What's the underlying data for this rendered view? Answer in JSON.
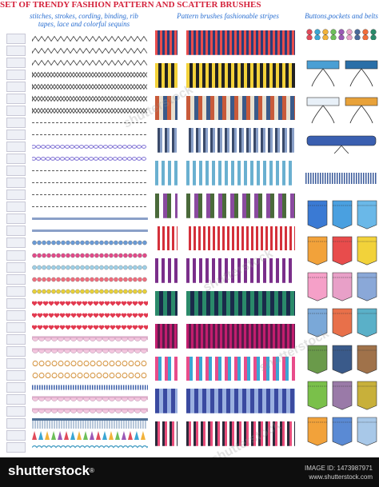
{
  "title": "SET OF TRENDY FASHION PATTERN AND SCATTER BRUSHES",
  "subtitles": {
    "left": "stitches, strokes, cording, binding, rib tapes, lace and colorful sequins",
    "middle": "Pattern brushes fashionable stripes",
    "right": "Buttons,pockets and belts"
  },
  "footer": {
    "logo": "shutterstock",
    "image_id": "IMAGE ID: 1473987971",
    "site": "www.shutterstock.com"
  },
  "watermark": "shutterstock",
  "icons": {
    "buttons_row": "colored-buttons-icon",
    "belt": "belt-icon",
    "pocket": "pocket-icon"
  },
  "colors": {
    "title": "#d4213a",
    "subtitle": "#2a6fd1",
    "footer": "#0e0e0e"
  }
}
